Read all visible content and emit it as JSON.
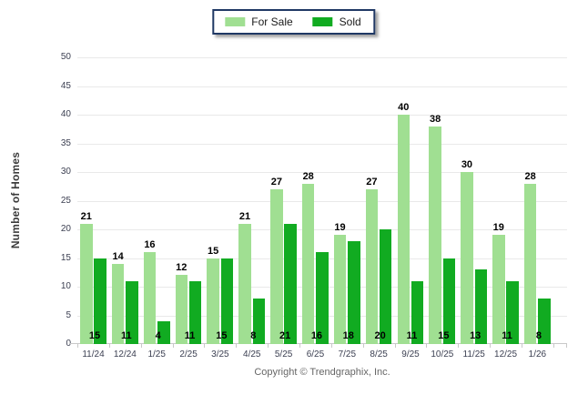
{
  "chart_data": {
    "type": "bar",
    "title": "",
    "categories": [
      "11/24",
      "12/24",
      "1/25",
      "2/25",
      "3/25",
      "4/25",
      "5/25",
      "6/25",
      "7/25",
      "8/25",
      "9/25",
      "10/25",
      "11/25",
      "12/25",
      "1/26"
    ],
    "series": [
      {
        "name": "For Sale",
        "color": "#A0DF92",
        "values": [
          21,
          14,
          16,
          12,
          15,
          21,
          27,
          28,
          19,
          27,
          40,
          38,
          30,
          19,
          28
        ],
        "label_position": "above-bar"
      },
      {
        "name": "Sold",
        "color": "#11AB21",
        "values": [
          15,
          11,
          4,
          11,
          15,
          8,
          21,
          16,
          18,
          20,
          11,
          15,
          13,
          11,
          8
        ],
        "label_position": "inside-bottom"
      }
    ],
    "ylabel": "Number of Homes",
    "xlabel": "",
    "ylim": [
      0,
      50
    ],
    "ytick_step": 5,
    "grid": "horizontal",
    "legend_position": "top-center",
    "footer": "Copyright © Trendgraphix, Inc."
  },
  "colors": {
    "for_sale": "#A0DF92",
    "sold": "#11AB21",
    "legend_border": "#1F3864",
    "gridline": "#E9E9E9",
    "axis_line": "#C9C9C9",
    "value_label": "#000000",
    "tick_label": "#3B3F51",
    "footer_text": "#666666"
  }
}
